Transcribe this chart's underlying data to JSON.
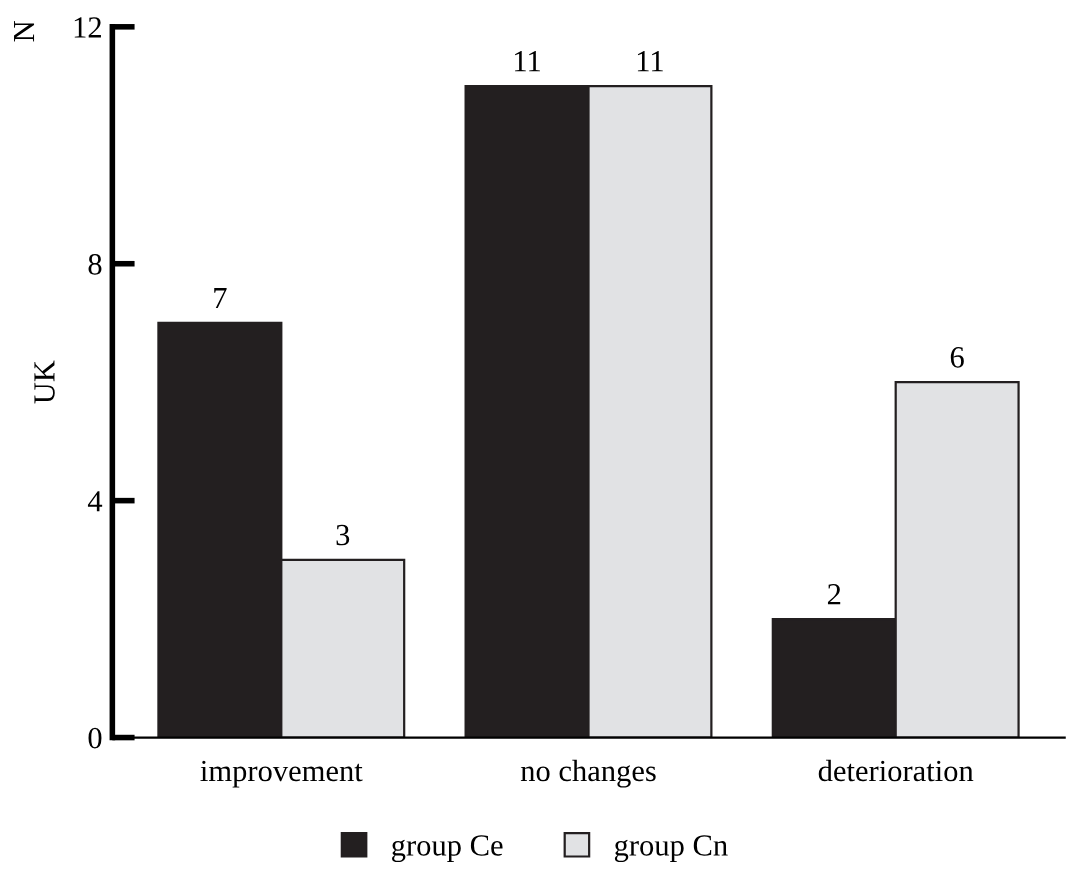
{
  "chart_data": {
    "type": "bar",
    "ylabel": "UK",
    "annotations": [
      "N"
    ],
    "categories": [
      "improvement",
      "no changes",
      "deterioration"
    ],
    "series": [
      {
        "name": "group Ce",
        "color": "#231f20",
        "values": [
          7,
          11,
          2
        ]
      },
      {
        "name": "group Cn",
        "color": "#e1e2e4",
        "values": [
          3,
          11,
          6
        ]
      }
    ],
    "ylim": [
      0,
      12
    ],
    "yticks": [
      0,
      4,
      8,
      12
    ],
    "data_labels": true,
    "grid": false,
    "legend": "bottom"
  }
}
